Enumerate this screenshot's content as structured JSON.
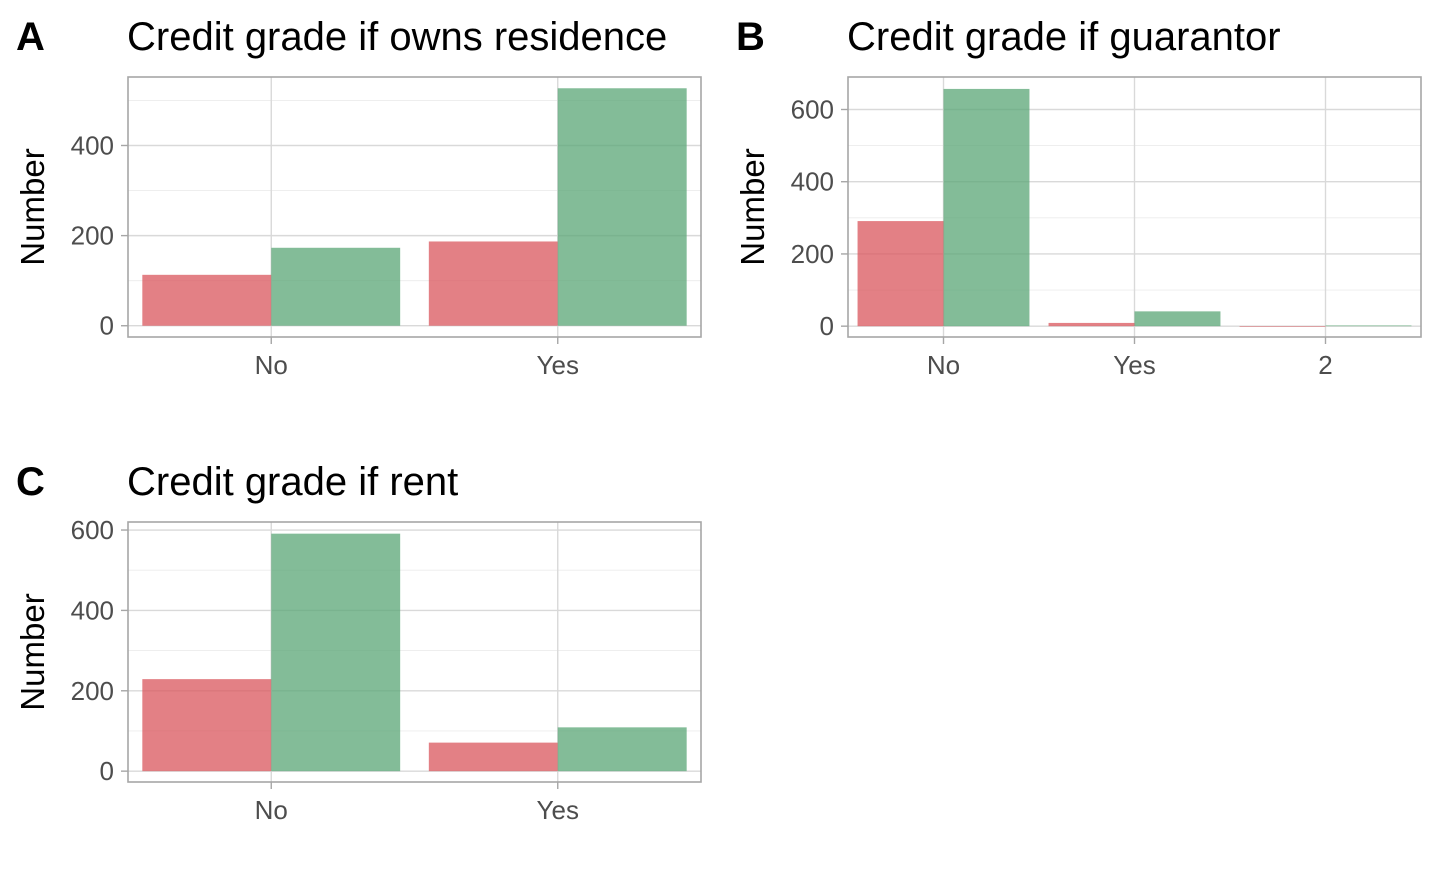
{
  "colors": {
    "series_1": "#d9555c",
    "series_2": "#5aa575",
    "bar_opacity": 0.75
  },
  "chart_data": [
    {
      "tag": "A",
      "type": "bar",
      "title": "Credit grade if owns residence",
      "xlabel": "",
      "ylabel": "Number",
      "categories": [
        "No",
        "Yes"
      ],
      "series": [
        {
          "values": [
            113,
            187
          ]
        },
        {
          "values": [
            173,
            527
          ]
        }
      ],
      "yticks": [
        0,
        200,
        400
      ],
      "ylim": [
        -25,
        552
      ],
      "grid": true,
      "legend": "none"
    },
    {
      "tag": "B",
      "type": "bar",
      "title": "Credit grade if guarantor",
      "xlabel": "",
      "ylabel": "Number",
      "categories": [
        "No",
        "Yes",
        "2"
      ],
      "series": [
        {
          "values": [
            291,
            9,
            0
          ]
        },
        {
          "values": [
            657,
            41,
            2
          ]
        }
      ],
      "yticks": [
        0,
        200,
        400,
        600
      ],
      "ylim": [
        -30,
        690
      ],
      "grid": true,
      "legend": "none"
    },
    {
      "tag": "C",
      "type": "bar",
      "title": "Credit grade if rent",
      "xlabel": "",
      "ylabel": "Number",
      "categories": [
        "No",
        "Yes"
      ],
      "series": [
        {
          "values": [
            229,
            71
          ]
        },
        {
          "values": [
            591,
            109
          ]
        }
      ],
      "yticks": [
        0,
        200,
        400,
        600
      ],
      "ylim": [
        -27,
        620
      ],
      "grid": true,
      "legend": "none"
    }
  ]
}
